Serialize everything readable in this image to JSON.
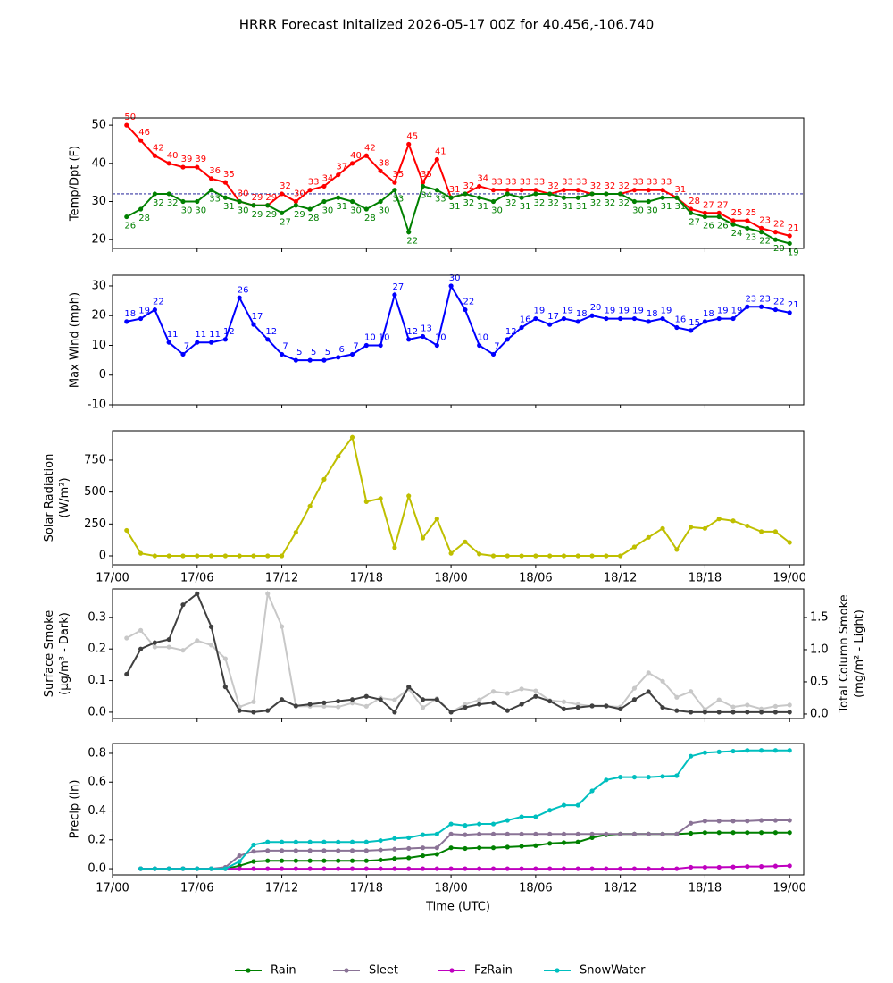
{
  "chart_data": [
    {
      "type": "line",
      "title": "HRRR Forecast Initalized 2026-05-17 00Z for 40.456,-106.740",
      "ylabel": [
        "Temp/Dpt (F)"
      ],
      "x": [
        1,
        2,
        3,
        4,
        5,
        6,
        7,
        8,
        9,
        10,
        11,
        12,
        13,
        14,
        15,
        16,
        17,
        18,
        19,
        20,
        21,
        22,
        23,
        24,
        25,
        26,
        27,
        28,
        29,
        30,
        31,
        32,
        33,
        34,
        35,
        36,
        37,
        38,
        39,
        40,
        41,
        42,
        43,
        44,
        45,
        46,
        47,
        48
      ],
      "xlim": [
        0,
        49
      ],
      "xticks": [
        0,
        6,
        12,
        18,
        24,
        30,
        36,
        42,
        48
      ],
      "ylim": [
        17.7,
        51.9
      ],
      "yticks": [
        20,
        30,
        40,
        50
      ],
      "hline": 32,
      "hline_color": "#00008b",
      "series": [
        {
          "name": "Temp",
          "color": "#ff0000",
          "show_values": true,
          "label_pos": "above",
          "values": [
            50,
            46,
            42,
            40,
            39,
            39,
            36,
            35,
            30,
            29,
            29,
            32,
            30,
            33,
            34,
            37,
            40,
            42,
            38,
            35,
            45,
            35,
            41,
            31,
            32,
            34,
            33,
            33,
            33,
            33,
            32,
            33,
            33,
            32,
            32,
            32,
            33,
            33,
            33,
            31,
            28,
            27,
            27,
            25,
            25,
            23,
            22,
            21
          ]
        },
        {
          "name": "Dpt",
          "color": "#008000",
          "show_values": true,
          "label_pos": "below",
          "values": [
            26,
            28,
            32,
            32,
            30,
            30,
            33,
            31,
            30,
            29,
            29,
            27,
            29,
            28,
            30,
            31,
            30,
            28,
            30,
            33,
            22,
            34,
            33,
            31,
            32,
            31,
            30,
            32,
            31,
            32,
            32,
            31,
            31,
            32,
            32,
            32,
            30,
            30,
            31,
            31,
            27,
            26,
            26,
            24,
            23,
            22,
            20,
            19
          ]
        }
      ]
    },
    {
      "type": "line",
      "ylabel": [
        "Max Wind (mph)"
      ],
      "x": [
        1,
        2,
        3,
        4,
        5,
        6,
        7,
        8,
        9,
        10,
        11,
        12,
        13,
        14,
        15,
        16,
        17,
        18,
        19,
        20,
        21,
        22,
        23,
        24,
        25,
        26,
        27,
        28,
        29,
        30,
        31,
        32,
        33,
        34,
        35,
        36,
        37,
        38,
        39,
        40,
        41,
        42,
        43,
        44,
        45,
        46,
        47,
        48
      ],
      "xlim": [
        0,
        49
      ],
      "xticks": [
        0,
        6,
        12,
        18,
        24,
        30,
        36,
        42,
        48
      ],
      "ylim": [
        -10,
        33.6
      ],
      "yticks": [
        -10,
        0,
        10,
        20,
        30
      ],
      "series": [
        {
          "name": "Max Wind",
          "color": "#0000ff",
          "show_values": true,
          "label_pos": "above",
          "values": [
            18,
            19,
            22,
            11,
            7,
            11,
            11,
            12,
            26,
            17,
            12,
            7,
            5,
            5,
            5,
            6,
            7,
            10,
            10,
            27,
            12,
            13,
            10,
            30,
            22,
            10,
            7,
            12,
            16,
            19,
            17,
            19,
            18,
            20,
            19,
            19,
            19,
            18,
            19,
            16,
            15,
            18,
            19,
            19,
            23,
            23,
            22,
            21
          ]
        }
      ]
    },
    {
      "type": "line",
      "ylabel": [
        "Solar Radiation",
        "(W/m²)"
      ],
      "x": [
        1,
        2,
        3,
        4,
        5,
        6,
        7,
        8,
        9,
        10,
        11,
        12,
        13,
        14,
        15,
        16,
        17,
        18,
        19,
        20,
        21,
        22,
        23,
        24,
        25,
        26,
        27,
        28,
        29,
        30,
        31,
        32,
        33,
        34,
        35,
        36,
        37,
        38,
        39,
        40,
        41,
        42,
        43,
        44,
        45,
        46,
        47,
        48
      ],
      "xlim": [
        0,
        49
      ],
      "xticks": [
        {
          "value": 0,
          "label": "17/00"
        },
        {
          "value": 6,
          "label": "17/06"
        },
        {
          "value": 12,
          "label": "17/12"
        },
        {
          "value": 18,
          "label": "17/18"
        },
        {
          "value": 24,
          "label": "18/00"
        },
        {
          "value": 30,
          "label": "18/06"
        },
        {
          "value": 36,
          "label": "18/12"
        },
        {
          "value": 42,
          "label": "18/18"
        },
        {
          "value": 48,
          "label": "19/00"
        }
      ],
      "ylim": [
        -70,
        981
      ],
      "yticks": [
        0,
        250,
        500,
        750
      ],
      "series": [
        {
          "name": "Solar Radiation",
          "color": "#bfbf00",
          "values": [
            200,
            20,
            0,
            0,
            0,
            0,
            0,
            0,
            0,
            0,
            0,
            0,
            185,
            390,
            600,
            780,
            930,
            425,
            450,
            65,
            470,
            140,
            290,
            20,
            110,
            15,
            0,
            0,
            0,
            0,
            0,
            0,
            0,
            0,
            0,
            0,
            70,
            145,
            215,
            50,
            225,
            215,
            290,
            275,
            235,
            190,
            190,
            105
          ]
        }
      ]
    },
    {
      "type": "line",
      "ylabel": [
        "Surface Smoke",
        "(μg/m³ - Dark)"
      ],
      "y2label": [
        "Total Column Smoke",
        "(mg/m² - Light)"
      ],
      "x": [
        1,
        2,
        3,
        4,
        5,
        6,
        7,
        8,
        9,
        10,
        11,
        12,
        13,
        14,
        15,
        16,
        17,
        18,
        19,
        20,
        21,
        22,
        23,
        24,
        25,
        26,
        27,
        28,
        29,
        30,
        31,
        32,
        33,
        34,
        35,
        36,
        37,
        38,
        39,
        40,
        41,
        42,
        43,
        44,
        45,
        46,
        47,
        48
      ],
      "xlim": [
        0,
        49
      ],
      "xticks": [
        0,
        6,
        12,
        18,
        24,
        30,
        36,
        42,
        48
      ],
      "ylim": [
        -0.02,
        0.39
      ],
      "yticks": [
        {
          "value": 0,
          "label": "0.0"
        },
        {
          "value": 0.1,
          "label": "0.1"
        },
        {
          "value": 0.2,
          "label": "0.2"
        },
        {
          "value": 0.3,
          "label": "0.3"
        }
      ],
      "y2lim": [
        -0.07,
        1.944
      ],
      "y2ticks": [
        {
          "value": 0,
          "label": "0.0"
        },
        {
          "value": 0.5,
          "label": "0.5"
        },
        {
          "value": 1,
          "label": "1.0"
        },
        {
          "value": 1.5,
          "label": "1.5"
        }
      ],
      "series": [
        {
          "name": "Total Column Smoke",
          "color": "#c8c8c8",
          "axis": "y2",
          "values": [
            1.18,
            1.3,
            1.04,
            1.04,
            0.99,
            1.14,
            1.07,
            0.86,
            0.11,
            0.19,
            1.87,
            1.36,
            0.12,
            0.12,
            0.12,
            0.11,
            0.17,
            0.12,
            0.25,
            0.22,
            0.39,
            0.1,
            0.24,
            0.03,
            0.15,
            0.22,
            0.35,
            0.32,
            0.39,
            0.36,
            0.21,
            0.19,
            0.15,
            0.12,
            0.12,
            0.11,
            0.4,
            0.64,
            0.51,
            0.26,
            0.35,
            0.07,
            0.22,
            0.11,
            0.14,
            0.08,
            0.12,
            0.14
          ]
        },
        {
          "name": "Surface Smoke",
          "color": "#404040",
          "values": [
            0.12,
            0.2,
            0.22,
            0.23,
            0.34,
            0.375,
            0.27,
            0.08,
            0.005,
            0,
            0.005,
            0.04,
            0.02,
            0.025,
            0.03,
            0.035,
            0.04,
            0.05,
            0.04,
            0,
            0.08,
            0.04,
            0.04,
            0,
            0.015,
            0.025,
            0.03,
            0.005,
            0.025,
            0.05,
            0.035,
            0.01,
            0.015,
            0.02,
            0.02,
            0.01,
            0.04,
            0.065,
            0.015,
            0.005,
            0,
            0,
            0,
            0,
            0,
            0,
            0,
            0
          ]
        }
      ]
    },
    {
      "type": "line",
      "ylabel": [
        "Precip (in)"
      ],
      "xlabel": "Time (UTC)",
      "legend": "bottom",
      "x": [
        1,
        2,
        3,
        4,
        5,
        6,
        7,
        8,
        9,
        10,
        11,
        12,
        13,
        14,
        15,
        16,
        17,
        18,
        19,
        20,
        21,
        22,
        23,
        24,
        25,
        26,
        27,
        28,
        29,
        30,
        31,
        32,
        33,
        34,
        35,
        36,
        37,
        38,
        39,
        40,
        41,
        42,
        43,
        44,
        45,
        46,
        47,
        48
      ],
      "xlim": [
        0,
        49
      ],
      "xticks": [
        {
          "value": 0,
          "label": "17/00"
        },
        {
          "value": 6,
          "label": "17/06"
        },
        {
          "value": 12,
          "label": "17/12"
        },
        {
          "value": 18,
          "label": "17/18"
        },
        {
          "value": 24,
          "label": "18/00"
        },
        {
          "value": 30,
          "label": "18/06"
        },
        {
          "value": 36,
          "label": "18/12"
        },
        {
          "value": 42,
          "label": "18/18"
        },
        {
          "value": 48,
          "label": "19/00"
        }
      ],
      "ylim": [
        -0.043,
        0.868
      ],
      "yticks": [
        {
          "value": 0,
          "label": "0.0"
        },
        {
          "value": 0.2,
          "label": "0.2"
        },
        {
          "value": 0.4,
          "label": "0.4"
        },
        {
          "value": 0.6,
          "label": "0.6"
        },
        {
          "value": 0.8,
          "label": "0.8"
        }
      ],
      "series": [
        {
          "name": "Rain",
          "color": "#008000",
          "values": [
            null,
            0,
            0,
            0,
            0,
            0,
            0,
            0,
            0.02,
            0.05,
            0.055,
            0.055,
            0.055,
            0.055,
            0.055,
            0.055,
            0.055,
            0.055,
            0.06,
            0.07,
            0.075,
            0.09,
            0.1,
            0.145,
            0.14,
            0.145,
            0.145,
            0.15,
            0.155,
            0.16,
            0.175,
            0.18,
            0.185,
            0.215,
            0.235,
            0.24,
            0.24,
            0.24,
            0.24,
            0.24,
            0.245,
            0.25,
            0.25,
            0.25,
            0.25,
            0.25,
            0.25,
            0.25
          ]
        },
        {
          "name": "Sleet",
          "color": "#8a7396",
          "values": [
            null,
            0,
            0,
            0,
            0,
            0,
            0,
            0.01,
            0.09,
            0.12,
            0.125,
            0.125,
            0.125,
            0.125,
            0.125,
            0.125,
            0.125,
            0.125,
            0.13,
            0.135,
            0.14,
            0.145,
            0.145,
            0.24,
            0.235,
            0.24,
            0.24,
            0.24,
            0.24,
            0.24,
            0.24,
            0.24,
            0.24,
            0.24,
            0.24,
            0.24,
            0.24,
            0.24,
            0.24,
            0.24,
            0.315,
            0.33,
            0.33,
            0.33,
            0.33,
            0.335,
            0.335,
            0.335
          ]
        },
        {
          "name": "FzRain",
          "color": "#bf00bf",
          "values": [
            null,
            0,
            0,
            0,
            0,
            0,
            0,
            0,
            0,
            0,
            0,
            0,
            0,
            0,
            0,
            0,
            0,
            0,
            0,
            0,
            0,
            0,
            0,
            0,
            0,
            0,
            0,
            0,
            0,
            0,
            0,
            0,
            0,
            0,
            0,
            0,
            0,
            0,
            0,
            0,
            0.01,
            0.01,
            0.01,
            0.012,
            0.015,
            0.015,
            0.018,
            0.02
          ]
        },
        {
          "name": "SnowWater",
          "color": "#00bfbf",
          "values": [
            null,
            0,
            0,
            0,
            0,
            0,
            0,
            0,
            0.05,
            0.165,
            0.185,
            0.185,
            0.185,
            0.185,
            0.185,
            0.185,
            0.185,
            0.185,
            0.195,
            0.21,
            0.215,
            0.235,
            0.24,
            0.31,
            0.3,
            0.31,
            0.31,
            0.335,
            0.36,
            0.36,
            0.405,
            0.44,
            0.44,
            0.54,
            0.615,
            0.635,
            0.635,
            0.635,
            0.64,
            0.645,
            0.78,
            0.805,
            0.81,
            0.815,
            0.82,
            0.82,
            0.82,
            0.82
          ]
        }
      ]
    }
  ]
}
